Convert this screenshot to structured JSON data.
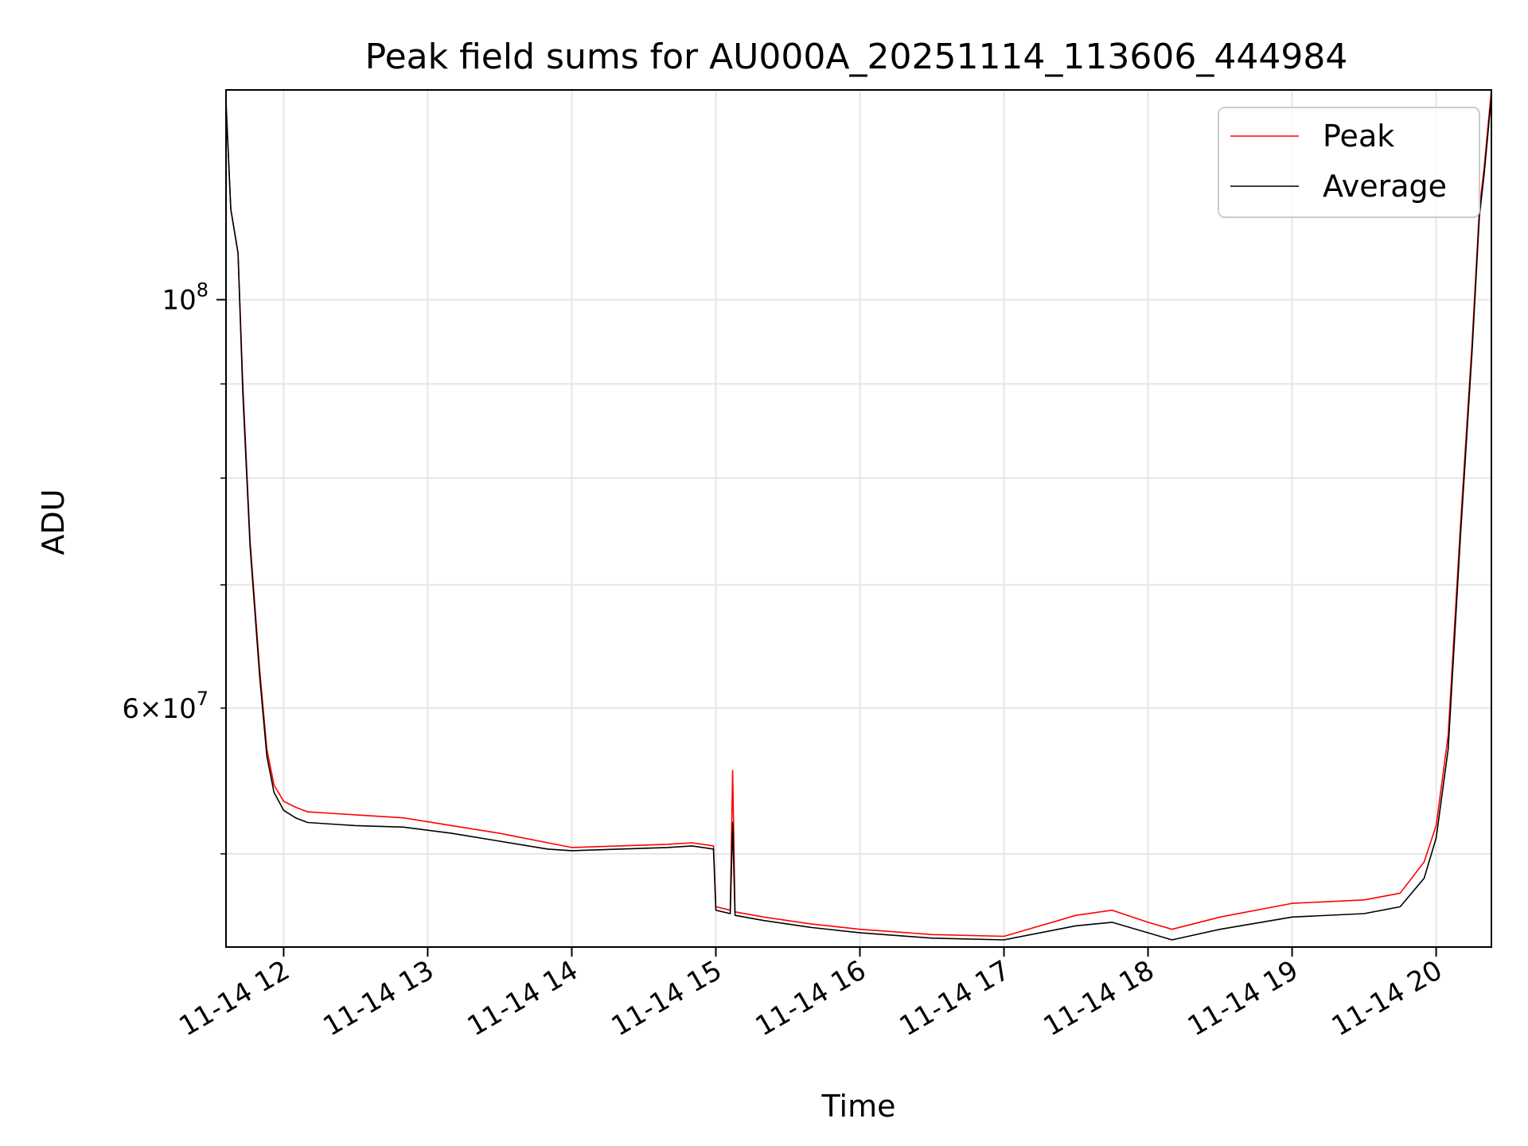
{
  "chart_data": {
    "type": "line",
    "title": "Peak field sums for AU000A_20251114_113606_444984",
    "xlabel": "Time",
    "ylabel": "ADU",
    "y_scale": "log",
    "ylim": [
      44500000,
      130000000
    ],
    "xlim": [
      "2025-11-14 11:36",
      "2025-11-14 20:23"
    ],
    "grid": true,
    "legend_position": "top-right",
    "x_tick_labels": [
      "11-14 12",
      "11-14 13",
      "11-14 14",
      "11-14 15",
      "11-14 16",
      "11-14 17",
      "11-14 18",
      "11-14 19",
      "11-14 20"
    ],
    "x_tick_times": [
      "2025-11-14 12:00",
      "2025-11-14 13:00",
      "2025-11-14 14:00",
      "2025-11-14 15:00",
      "2025-11-14 16:00",
      "2025-11-14 17:00",
      "2025-11-14 18:00",
      "2025-11-14 19:00",
      "2025-11-14 20:00"
    ],
    "y_major_ticks": [
      {
        "value": 100000000,
        "mantissa": "",
        "exponent": "8"
      }
    ],
    "y_minor_ticks": [
      {
        "value": 60000000,
        "mantissa": "6",
        "exponent": "7"
      }
    ],
    "y_minor_ticks_unlabeled": [
      50000000,
      70000000,
      80000000,
      90000000
    ],
    "series": [
      {
        "name": "Peak",
        "color": "#ff0000",
        "x": [
          "2025-11-14 11:36",
          "2025-11-14 11:38",
          "2025-11-14 11:41",
          "2025-11-14 11:43",
          "2025-11-14 11:46",
          "2025-11-14 11:50",
          "2025-11-14 11:53",
          "2025-11-14 11:56",
          "2025-11-14 12:00",
          "2025-11-14 12:05",
          "2025-11-14 12:10",
          "2025-11-14 12:20",
          "2025-11-14 12:30",
          "2025-11-14 12:50",
          "2025-11-14 13:10",
          "2025-11-14 13:30",
          "2025-11-14 13:50",
          "2025-11-14 14:00",
          "2025-11-14 14:20",
          "2025-11-14 14:40",
          "2025-11-14 14:50",
          "2025-11-14 14:59",
          "2025-11-14 15:00",
          "2025-11-14 15:06",
          "2025-11-14 15:07",
          "2025-11-14 15:08",
          "2025-11-14 15:20",
          "2025-11-14 15:40",
          "2025-11-14 16:00",
          "2025-11-14 16:30",
          "2025-11-14 17:00",
          "2025-11-14 17:30",
          "2025-11-14 17:45",
          "2025-11-14 18:00",
          "2025-11-14 18:10",
          "2025-11-14 18:30",
          "2025-11-14 19:00",
          "2025-11-14 19:30",
          "2025-11-14 19:45",
          "2025-11-14 19:55",
          "2025-11-14 20:00",
          "2025-11-14 20:05",
          "2025-11-14 20:10",
          "2025-11-14 20:15",
          "2025-11-14 20:18",
          "2025-11-14 20:20",
          "2025-11-14 20:23"
        ],
        "y": [
          128000000,
          112000000,
          106000000,
          90000000,
          74000000,
          63000000,
          57000000,
          54500000,
          53400000,
          53000000,
          52700000,
          52600000,
          52500000,
          52300000,
          51800000,
          51300000,
          50700000,
          50400000,
          50500000,
          50600000,
          50700000,
          50500000,
          46800000,
          46600000,
          55500000,
          46500000,
          46200000,
          45800000,
          45500000,
          45200000,
          45100000,
          46300000,
          46600000,
          45900000,
          45500000,
          46200000,
          47000000,
          47200000,
          47600000,
          49500000,
          51800000,
          58000000,
          75000000,
          95000000,
          112000000,
          118000000,
          130000000
        ]
      },
      {
        "name": "Average",
        "color": "#000000",
        "x": [
          "2025-11-14 11:36",
          "2025-11-14 11:38",
          "2025-11-14 11:41",
          "2025-11-14 11:43",
          "2025-11-14 11:46",
          "2025-11-14 11:50",
          "2025-11-14 11:53",
          "2025-11-14 11:56",
          "2025-11-14 12:00",
          "2025-11-14 12:05",
          "2025-11-14 12:10",
          "2025-11-14 12:20",
          "2025-11-14 12:30",
          "2025-11-14 12:50",
          "2025-11-14 13:10",
          "2025-11-14 13:30",
          "2025-11-14 13:50",
          "2025-11-14 14:00",
          "2025-11-14 14:20",
          "2025-11-14 14:40",
          "2025-11-14 14:50",
          "2025-11-14 14:59",
          "2025-11-14 15:00",
          "2025-11-14 15:06",
          "2025-11-14 15:07",
          "2025-11-14 15:08",
          "2025-11-14 15:20",
          "2025-11-14 15:40",
          "2025-11-14 16:00",
          "2025-11-14 16:30",
          "2025-11-14 17:00",
          "2025-11-14 17:30",
          "2025-11-14 17:45",
          "2025-11-14 18:00",
          "2025-11-14 18:10",
          "2025-11-14 18:30",
          "2025-11-14 19:00",
          "2025-11-14 19:30",
          "2025-11-14 19:45",
          "2025-11-14 19:55",
          "2025-11-14 20:00",
          "2025-11-14 20:05",
          "2025-11-14 20:10",
          "2025-11-14 20:15",
          "2025-11-14 20:18",
          "2025-11-14 20:20",
          "2025-11-14 20:23"
        ],
        "y": [
          128000000,
          112000000,
          106000000,
          89000000,
          73500000,
          62500000,
          56500000,
          54000000,
          52800000,
          52300000,
          52000000,
          51900000,
          51800000,
          51700000,
          51300000,
          50800000,
          50300000,
          50200000,
          50300000,
          50400000,
          50500000,
          50300000,
          46600000,
          46400000,
          52000000,
          46300000,
          46000000,
          45600000,
          45300000,
          45000000,
          44900000,
          45700000,
          45900000,
          45300000,
          44900000,
          45500000,
          46200000,
          46400000,
          46800000,
          48500000,
          51000000,
          57000000,
          74000000,
          94000000,
          111000000,
          117000000,
          129000000
        ]
      }
    ]
  }
}
